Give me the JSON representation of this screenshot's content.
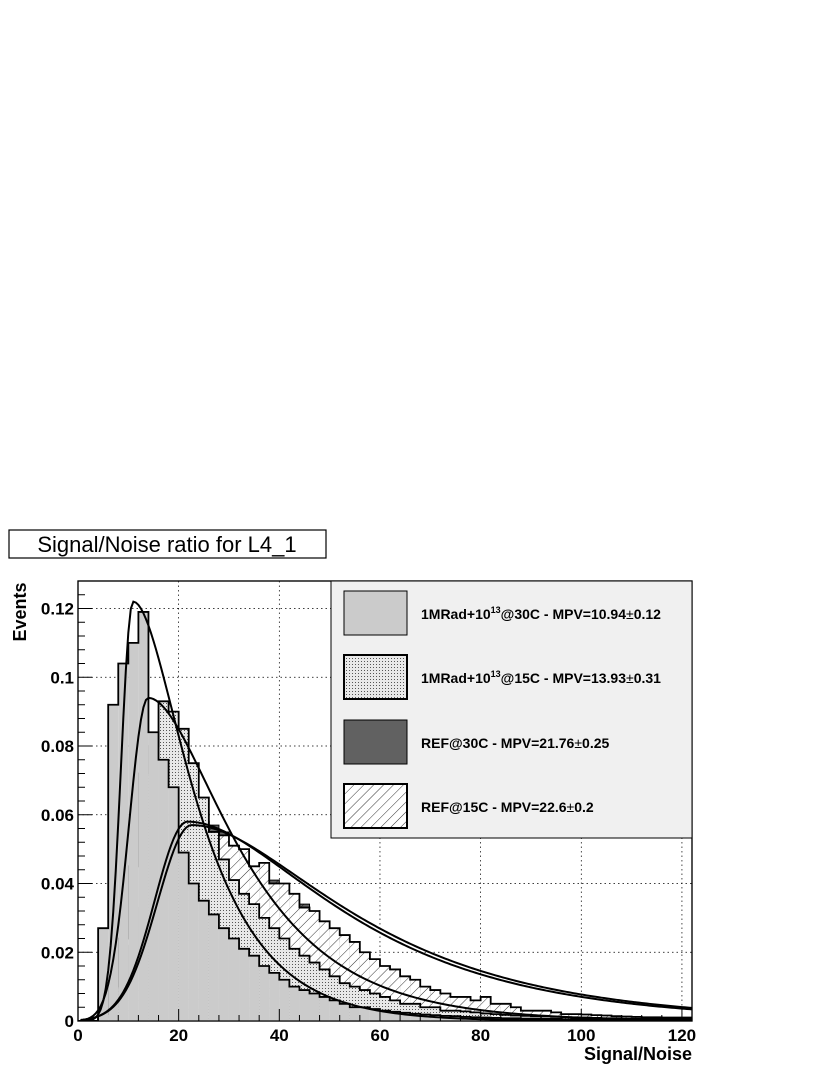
{
  "chart_data": {
    "type": "bar",
    "title": "Signal/Noise ratio for L4_1",
    "xlabel": "Signal/Noise",
    "ylabel": "Events",
    "xlim": [
      0,
      122
    ],
    "ylim": [
      0,
      0.128
    ],
    "bin_width": 2,
    "x_ticks": [
      0,
      20,
      40,
      60,
      80,
      100,
      120
    ],
    "x_tick_labels": [
      "0",
      "20",
      "40",
      "60",
      "80",
      "100",
      "120"
    ],
    "y_ticks": [
      0,
      0.02,
      0.04,
      0.06,
      0.08,
      0.1,
      0.12
    ],
    "y_tick_labels": [
      "0",
      "0.02",
      "0.04",
      "0.06",
      "0.08",
      "0.1",
      "0.12"
    ],
    "grid": true,
    "legend_position": "top-right",
    "series": [
      {
        "name": "REF@30C - MPV=21.76±0.25",
        "legend_parts": {
          "prefix": "REF@30C - MPV=",
          "mpv": "21.76",
          "pm": "±",
          "err": "0.25"
        },
        "fill": "#616161",
        "hatched": true,
        "values": [
          0.0,
          0.0,
          0.001,
          0.005,
          0.012,
          0.022,
          0.033,
          0.037,
          0.042,
          0.051,
          0.055,
          0.058,
          0.056,
          0.057,
          0.055,
          0.05,
          0.047,
          0.045,
          0.043,
          0.041,
          0.039,
          0.036,
          0.034,
          0.031,
          0.028,
          0.026,
          0.023,
          0.021,
          0.019,
          0.017,
          0.015,
          0.013,
          0.012,
          0.011,
          0.009,
          0.008,
          0.007,
          0.006,
          0.006,
          0.005,
          0.005,
          0.004,
          0.004,
          0.0035,
          0.003,
          0.003,
          0.0025,
          0.002,
          0.002,
          0.002,
          0.0018,
          0.0016,
          0.0015,
          0.0014,
          0.0013,
          0.0012,
          0.0011,
          0.001,
          0.001,
          0.001,
          0.0009
        ]
      },
      {
        "name": "REF@15C - MPV=22.6±0.2",
        "legend_parts": {
          "prefix": "REF@15C - MPV=",
          "mpv": "22.6",
          "pm": "±",
          "err": "0.2"
        },
        "fill": "#ffffff",
        "hatched": true,
        "values": [
          0.0,
          0.0,
          0.001,
          0.004,
          0.011,
          0.021,
          0.032,
          0.036,
          0.044,
          0.05,
          0.054,
          0.057,
          0.058,
          0.055,
          0.054,
          0.051,
          0.05,
          0.045,
          0.046,
          0.04,
          0.04,
          0.037,
          0.033,
          0.032,
          0.029,
          0.027,
          0.025,
          0.023,
          0.02,
          0.018,
          0.016,
          0.015,
          0.013,
          0.012,
          0.01,
          0.009,
          0.008,
          0.007,
          0.007,
          0.006,
          0.007,
          0.005,
          0.005,
          0.004,
          0.003,
          0.003,
          0.003,
          0.0025,
          0.002,
          0.002,
          0.0019,
          0.0017,
          0.0016,
          0.0014,
          0.0013,
          0.0012,
          0.0011,
          0.0011,
          0.001,
          0.001,
          0.001
        ]
      },
      {
        "name": "1MRad+10^13@15C - MPV=13.93±0.31",
        "legend_parts": {
          "prefix": "1MRad+10",
          "sup": "13",
          "suffix": "@15C - MPV=",
          "mpv": "13.93",
          "pm": "±",
          "err": "0.31"
        },
        "fill": "#e8e8e8",
        "dotted": true,
        "values": [
          0.0,
          0.0,
          0.002,
          0.01,
          0.024,
          0.045,
          0.072,
          0.08,
          0.093,
          0.09,
          0.085,
          0.075,
          0.065,
          0.055,
          0.047,
          0.041,
          0.037,
          0.034,
          0.03,
          0.027,
          0.024,
          0.021,
          0.019,
          0.017,
          0.015,
          0.013,
          0.011,
          0.01,
          0.009,
          0.008,
          0.007,
          0.006,
          0.005,
          0.005,
          0.004,
          0.004,
          0.003,
          0.003,
          0.0028,
          0.0025,
          0.0022,
          0.002,
          0.0018,
          0.0016,
          0.0015,
          0.0014,
          0.0013,
          0.0012,
          0.0011,
          0.001,
          0.001,
          0.0009,
          0.0008,
          0.0008,
          0.0007,
          0.0007,
          0.0006,
          0.0006,
          0.0005,
          0.0005,
          0.0005
        ]
      },
      {
        "name": "1MRad+10^13@30C - MPV=10.94±0.12",
        "legend_parts": {
          "prefix": "1MRad+10",
          "sup": "13",
          "suffix": "@30C - MPV=",
          "mpv": "10.94",
          "pm": "±",
          "err": "0.12"
        },
        "fill": "#cbcbcb",
        "dotted": false,
        "values": [
          0.0,
          0.0,
          0.027,
          0.092,
          0.104,
          0.11,
          0.119,
          0.084,
          0.076,
          0.068,
          0.049,
          0.04,
          0.035,
          0.031,
          0.027,
          0.024,
          0.021,
          0.019,
          0.016,
          0.014,
          0.012,
          0.01,
          0.009,
          0.008,
          0.007,
          0.006,
          0.005,
          0.004,
          0.004,
          0.0035,
          0.003,
          0.0027,
          0.0024,
          0.0021,
          0.0019,
          0.0017,
          0.0015,
          0.0014,
          0.0012,
          0.0011,
          0.001,
          0.0009,
          0.0008,
          0.0008,
          0.0007,
          0.0007,
          0.0006,
          0.0006,
          0.0005,
          0.0005,
          0.0005,
          0.0004,
          0.0004,
          0.0004,
          0.0003,
          0.0003,
          0.0003,
          0.0003,
          0.0002,
          0.0002,
          0.0002
        ]
      }
    ],
    "fits": [
      {
        "series": "1MRad+10^13@30C",
        "mpv": 10.94,
        "peak": 0.122,
        "left_sigma": 2.4,
        "right_sigma": 5.8
      },
      {
        "series": "1MRad+10^13@15C",
        "mpv": 13.93,
        "peak": 0.094,
        "left_sigma": 3.8,
        "right_sigma": 8.5
      },
      {
        "series": "REF@30C",
        "mpv": 21.76,
        "peak": 0.058,
        "left_sigma": 6.5,
        "right_sigma": 15.0
      },
      {
        "series": "REF@15C",
        "mpv": 22.6,
        "peak": 0.057,
        "left_sigma": 6.8,
        "right_sigma": 15.5
      }
    ]
  }
}
